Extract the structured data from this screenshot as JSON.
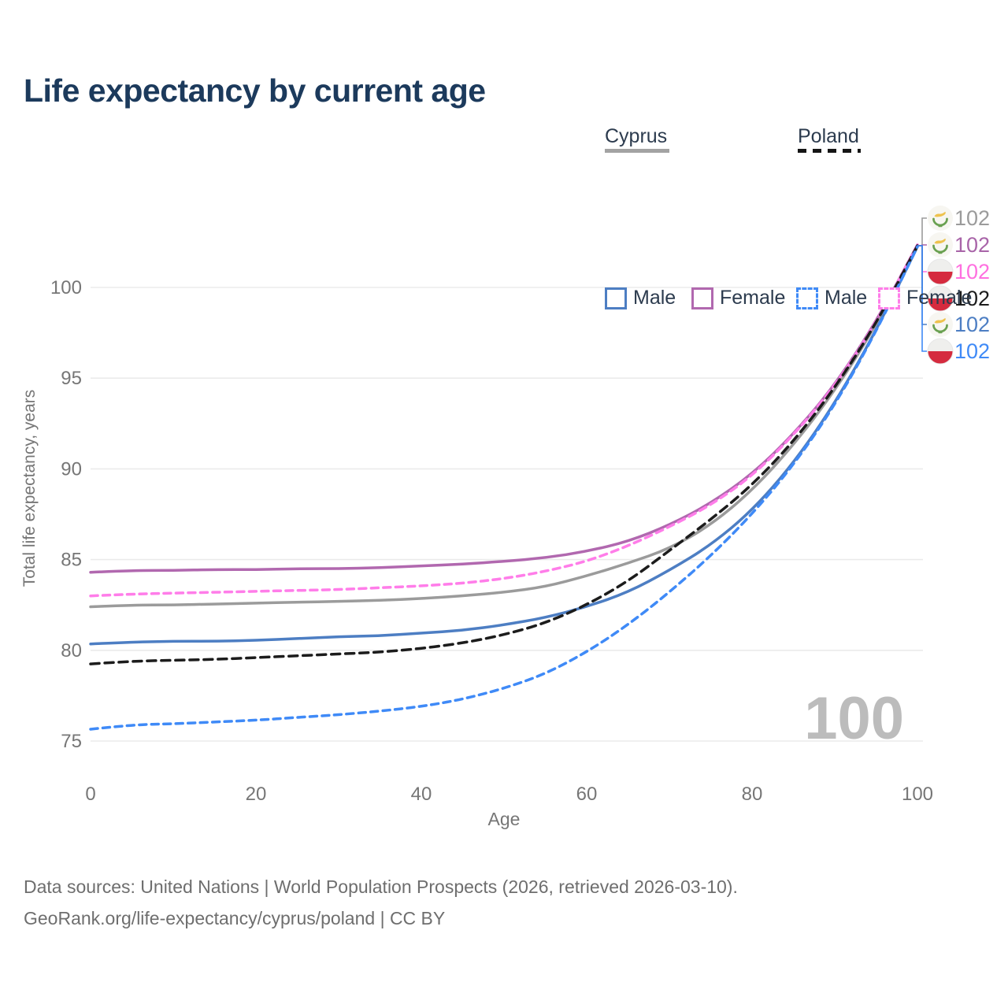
{
  "title": "Life expectancy by current age",
  "watermark": "100",
  "legend": {
    "groups": [
      {
        "label": "Cyprus",
        "line_style": "solid",
        "underline_color": "#a3a3a3",
        "items": [
          {
            "label": "Male",
            "color": "#4d7ec3"
          },
          {
            "label": "Female",
            "color": "#b168af"
          }
        ]
      },
      {
        "label": "Poland",
        "line_style": "dashed",
        "underline_color": "#151515",
        "items": [
          {
            "label": "Male",
            "color": "#3f8af7"
          },
          {
            "label": "Female",
            "color": "#ff7de9"
          }
        ]
      }
    ]
  },
  "chart_data": {
    "type": "line",
    "title": "Life expectancy by current age",
    "xlabel": "Age",
    "ylabel": "Total life expectancy, years",
    "x_ticks": [
      0,
      20,
      40,
      60,
      80,
      100
    ],
    "y_ticks": [
      75,
      80,
      85,
      90,
      95,
      100
    ],
    "xlim": [
      0,
      100
    ],
    "ylim": [
      73.8,
      103.2
    ],
    "grid": "horizontal",
    "legend_position": "top-right",
    "x": [
      0,
      5,
      10,
      15,
      20,
      25,
      30,
      35,
      40,
      45,
      50,
      55,
      60,
      65,
      70,
      75,
      80,
      85,
      90,
      95,
      100
    ],
    "series": [
      {
        "name": "Cyprus All",
        "country": "Cyprus",
        "line": "solid",
        "color": "#9b9b9b",
        "values": [
          82.4,
          82.5,
          82.5,
          82.55,
          82.6,
          82.65,
          82.7,
          82.75,
          82.85,
          83.0,
          83.2,
          83.5,
          84.1,
          84.8,
          85.6,
          86.9,
          88.8,
          91.3,
          94.3,
          97.9,
          102.3
        ]
      },
      {
        "name": "Cyprus Female",
        "country": "Cyprus",
        "line": "solid",
        "color": "#b168af",
        "values": [
          84.3,
          84.4,
          84.4,
          84.45,
          84.45,
          84.5,
          84.5,
          84.55,
          84.65,
          84.75,
          84.9,
          85.1,
          85.45,
          86.0,
          86.9,
          88.1,
          89.7,
          91.9,
          94.6,
          98.1,
          102.35
        ]
      },
      {
        "name": "Cyprus Male",
        "country": "Cyprus",
        "line": "solid",
        "color": "#4d7ec3",
        "values": [
          80.35,
          80.45,
          80.5,
          80.5,
          80.55,
          80.65,
          80.75,
          80.8,
          80.95,
          81.1,
          81.4,
          81.8,
          82.4,
          83.2,
          84.4,
          85.8,
          87.7,
          90.3,
          93.6,
          97.6,
          102.25
        ]
      },
      {
        "name": "Poland Female",
        "country": "Poland",
        "line": "dashed",
        "color": "#ff7de9",
        "values": [
          83.0,
          83.1,
          83.15,
          83.2,
          83.25,
          83.3,
          83.35,
          83.45,
          83.55,
          83.7,
          83.95,
          84.35,
          84.9,
          85.75,
          86.8,
          88.0,
          89.6,
          91.85,
          94.55,
          98.05,
          102.35
        ]
      },
      {
        "name": "Poland All",
        "country": "Poland",
        "line": "dashed",
        "color": "#1c1c1c",
        "values": [
          79.25,
          79.4,
          79.45,
          79.5,
          79.6,
          79.7,
          79.8,
          79.9,
          80.1,
          80.4,
          80.85,
          81.5,
          82.5,
          83.8,
          85.5,
          87.2,
          89.1,
          91.5,
          94.45,
          98.0,
          102.3
        ]
      },
      {
        "name": "Poland Male",
        "country": "Poland",
        "line": "dashed",
        "color": "#3f8af7",
        "values": [
          75.65,
          75.9,
          75.95,
          76.05,
          76.15,
          76.3,
          76.45,
          76.65,
          76.9,
          77.3,
          77.9,
          78.7,
          79.9,
          81.4,
          83.2,
          85.2,
          87.5,
          90.2,
          93.5,
          97.55,
          102.25
        ]
      }
    ],
    "end_labels": [
      {
        "value": "102",
        "flag": "cyprus",
        "series": "Cyprus All",
        "color": "#9b9b9b"
      },
      {
        "value": "102",
        "flag": "cyprus",
        "series": "Cyprus Female",
        "color": "#a864a8"
      },
      {
        "value": "102",
        "flag": "poland",
        "series": "Poland Female",
        "color": "#ff70e0"
      },
      {
        "value": "102",
        "flag": "poland",
        "series": "Poland All",
        "color": "#1c1c1c"
      },
      {
        "value": "102",
        "flag": "cyprus",
        "series": "Cyprus Male",
        "color": "#4d7ec3"
      },
      {
        "value": "102",
        "flag": "poland",
        "series": "Poland Male",
        "color": "#3f8af7"
      }
    ]
  },
  "footer": {
    "line1": "Data sources: United Nations | World Population Prospects (2026, retrieved 2026-03-10).",
    "line2": "GeoRank.org/life-expectancy/cyprus/poland | CC BY"
  }
}
